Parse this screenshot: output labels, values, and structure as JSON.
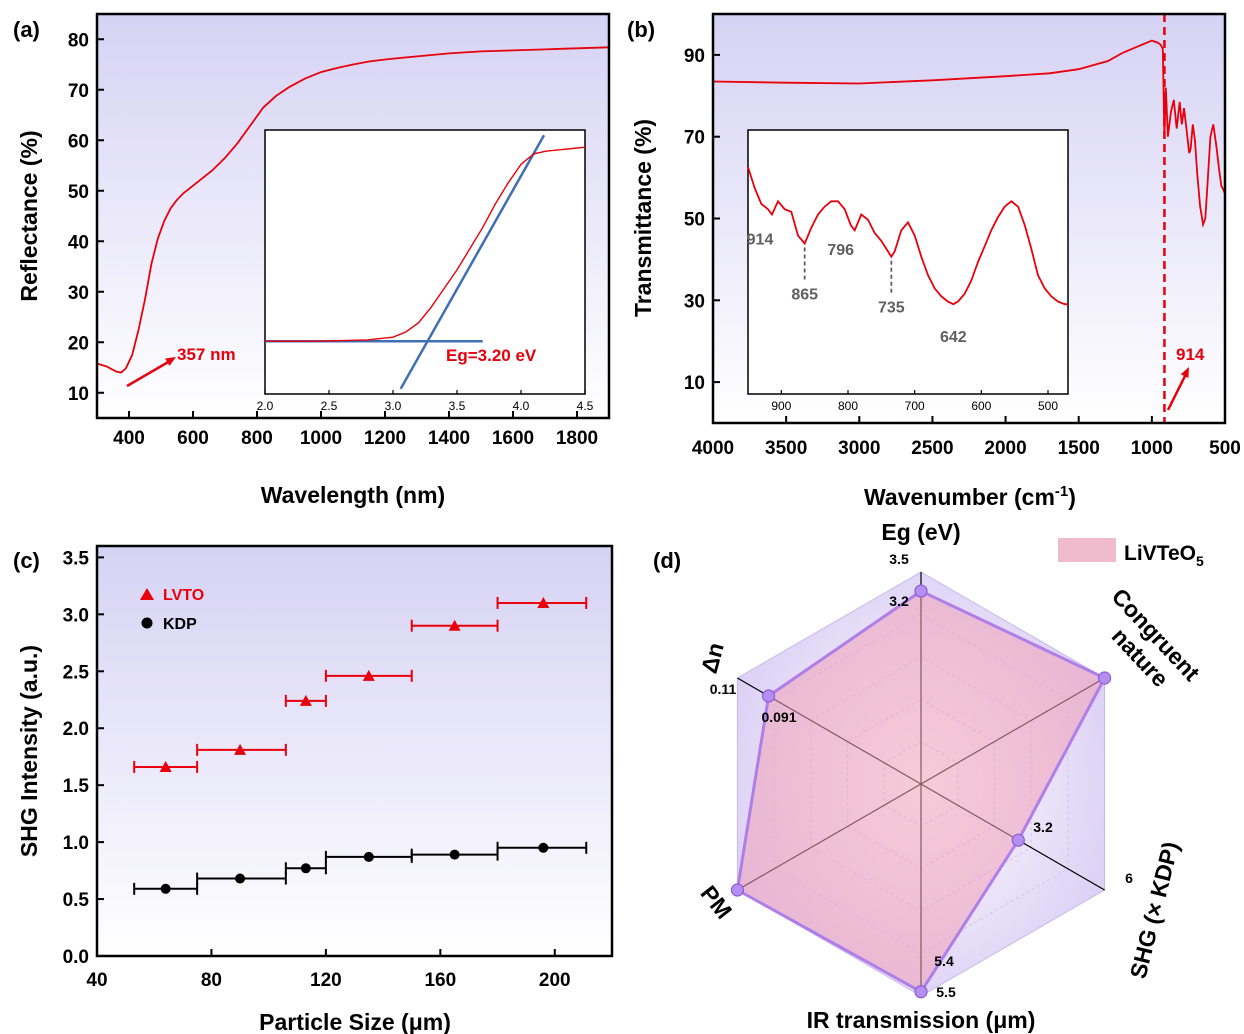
{
  "colors": {
    "curve": "#e8000b",
    "fit": "#3f6fb5",
    "bg_top": "#d6d2f4",
    "bg_bottom": "#ffffff",
    "radar": "#b07ee8",
    "radar_fill": "#f0a0b8",
    "peak_label": "#606060"
  },
  "chart_data": [
    {
      "panel": "(a)",
      "type": "line",
      "xlabel": "Wavelength (nm)",
      "ylabel": "Reflectance (%)",
      "xlim": [
        300,
        1900
      ],
      "ylim": [
        5,
        85
      ],
      "xticks": [
        "400",
        "600",
        "800",
        "1000",
        "1200",
        "1400",
        "1600",
        "1800"
      ],
      "yticks": [
        "10",
        "20",
        "30",
        "40",
        "50",
        "60",
        "70",
        "80"
      ],
      "series": [
        {
          "x": [
            300,
            330,
            360,
            375,
            390,
            410,
            430,
            450,
            470,
            490,
            510,
            530,
            550,
            570,
            600,
            630,
            660,
            700,
            740,
            780,
            820,
            860,
            900,
            950,
            1000,
            1050,
            1100,
            1150,
            1200,
            1250,
            1300,
            1350,
            1400,
            1450,
            1500,
            1550,
            1600,
            1650,
            1700,
            1750,
            1800,
            1850,
            1900
          ],
          "y": [
            15.8,
            15.2,
            14.2,
            14.0,
            14.8,
            17.5,
            22.5,
            28.5,
            35.5,
            40.5,
            44.0,
            46.5,
            48.2,
            49.5,
            51.0,
            52.5,
            54.0,
            56.5,
            59.5,
            63.0,
            66.5,
            68.8,
            70.5,
            72.2,
            73.5,
            74.3,
            75.0,
            75.6,
            76.0,
            76.3,
            76.6,
            76.9,
            77.2,
            77.4,
            77.6,
            77.7,
            77.8,
            77.9,
            78.0,
            78.1,
            78.2,
            78.3,
            78.4
          ]
        }
      ],
      "annotation": "357 nm",
      "inset": {
        "xlim": [
          2.0,
          4.5
        ],
        "ylim": [
          0,
          1
        ],
        "xticks": [
          "2.0",
          "2.5",
          "3.0",
          "3.5",
          "4.0",
          "4.5"
        ],
        "label": "Eg=3.20 eV",
        "curve": {
          "x": [
            2.0,
            2.4,
            2.8,
            3.0,
            3.1,
            3.2,
            3.3,
            3.4,
            3.5,
            3.6,
            3.7,
            3.8,
            3.9,
            4.0,
            4.1,
            4.2,
            4.3,
            4.4,
            4.5
          ],
          "y": [
            0.2,
            0.2,
            0.205,
            0.215,
            0.235,
            0.27,
            0.33,
            0.4,
            0.47,
            0.55,
            0.63,
            0.72,
            0.8,
            0.87,
            0.91,
            0.92,
            0.925,
            0.93,
            0.935
          ]
        },
        "baseline": {
          "x": [
            2.0,
            3.7
          ],
          "y": [
            0.2,
            0.2
          ]
        },
        "tangent": {
          "x": [
            3.06,
            4.18
          ],
          "y": [
            0.02,
            0.98
          ]
        }
      }
    },
    {
      "panel": "(b)",
      "type": "line",
      "xlabel": "Wavenumber (cm",
      "xlabel_sup": "-1",
      "xlabel_end": ")",
      "ylabel": "Transmittance (%)",
      "xlim": [
        4000,
        500
      ],
      "ylim": [
        0,
        100
      ],
      "xticks": [
        "4000",
        "3500",
        "3000",
        "2500",
        "2000",
        "1500",
        "1000",
        "500"
      ],
      "yticks": [
        "10",
        "30",
        "50",
        "70",
        "90"
      ],
      "series": [
        {
          "x": [
            4000,
            3500,
            3000,
            2500,
            2000,
            1700,
            1500,
            1300,
            1200,
            1100,
            1000,
            960,
            940,
            925,
            914,
            905,
            890,
            870,
            850,
            830,
            810,
            795,
            780,
            765,
            745,
            735,
            720,
            705,
            690,
            670,
            650,
            635,
            620,
            600,
            580,
            560,
            540,
            525,
            510,
            500
          ],
          "y": [
            83.5,
            83.2,
            83.0,
            83.8,
            84.8,
            85.5,
            86.5,
            88.5,
            90.5,
            92.0,
            93.5,
            93.0,
            92.5,
            91.5,
            70.0,
            82.0,
            70.0,
            76.0,
            79.0,
            72.0,
            78.5,
            73.0,
            77.0,
            72.5,
            66.0,
            67.0,
            73.0,
            69.0,
            61.0,
            53.0,
            48.5,
            50.0,
            58.0,
            70.0,
            73.0,
            68.0,
            62.0,
            58.0,
            57.0,
            56.0
          ]
        }
      ],
      "dashed_line_x": 914,
      "annotation": "914",
      "inset": {
        "xlim": [
          950,
          470
        ],
        "ylim": [
          0,
          1
        ],
        "xticks": [
          "900",
          "800",
          "700",
          "600",
          "500"
        ],
        "curve": {
          "x": [
            950,
            940,
            930,
            920,
            914,
            905,
            895,
            885,
            875,
            865,
            855,
            845,
            835,
            825,
            815,
            805,
            796,
            790,
            780,
            770,
            760,
            750,
            740,
            735,
            730,
            720,
            710,
            700,
            690,
            680,
            670,
            660,
            650,
            642,
            635,
            625,
            615,
            605,
            595,
            585,
            575,
            565,
            555,
            545,
            535,
            525,
            515,
            505,
            495,
            485,
            475,
            470
          ],
          "y": [
            0.86,
            0.78,
            0.72,
            0.7,
            0.68,
            0.73,
            0.7,
            0.69,
            0.6,
            0.57,
            0.63,
            0.68,
            0.71,
            0.73,
            0.73,
            0.7,
            0.64,
            0.62,
            0.68,
            0.66,
            0.61,
            0.58,
            0.54,
            0.52,
            0.54,
            0.62,
            0.65,
            0.6,
            0.52,
            0.45,
            0.4,
            0.37,
            0.35,
            0.34,
            0.35,
            0.38,
            0.43,
            0.5,
            0.56,
            0.62,
            0.67,
            0.71,
            0.73,
            0.71,
            0.64,
            0.55,
            0.45,
            0.4,
            0.37,
            0.35,
            0.34,
            0.34
          ]
        },
        "peaks": [
          {
            "x": 914,
            "label": "914",
            "label_pos": "above"
          },
          {
            "x": 865,
            "label": "865",
            "label_pos": "below"
          },
          {
            "x": 796,
            "label": "796",
            "label_pos": "above"
          },
          {
            "x": 735,
            "label": "735",
            "label_pos": "below"
          },
          {
            "x": 642,
            "label": "642",
            "label_pos": "below"
          }
        ]
      }
    },
    {
      "panel": "(c)",
      "type": "scatter",
      "xlabel": "Particle Size (μm)",
      "ylabel": "SHG Intensity (a.u.)",
      "xlim": [
        40,
        220
      ],
      "ylim": [
        0,
        3.6
      ],
      "xticks": [
        "40",
        "80",
        "120",
        "160",
        "200"
      ],
      "yticks": [
        "0.0",
        "0.5",
        "1.0",
        "1.5",
        "2.0",
        "2.5",
        "3.0",
        "3.5"
      ],
      "series": [
        {
          "name": "LVTO",
          "marker": "triangle",
          "color": "#e8000b",
          "x": [
            64,
            90,
            113,
            135,
            165,
            196
          ],
          "y": [
            1.66,
            1.81,
            2.24,
            2.46,
            2.9,
            3.1
          ],
          "xerr_low": [
            53,
            75,
            106,
            120,
            150,
            180
          ],
          "xerr_high": [
            75,
            106,
            120,
            150,
            180,
            211
          ]
        },
        {
          "name": "KDP",
          "marker": "circle",
          "color": "#000000",
          "x": [
            64,
            90,
            113,
            135,
            165,
            196
          ],
          "y": [
            0.59,
            0.68,
            0.77,
            0.87,
            0.89,
            0.95
          ],
          "xerr_low": [
            53,
            75,
            106,
            120,
            150,
            180
          ],
          "xerr_high": [
            75,
            106,
            120,
            150,
            180,
            211
          ]
        }
      ]
    },
    {
      "panel": "(d)",
      "type": "radar",
      "legend": "LiVTeO",
      "legend_sub": "5",
      "axes": [
        {
          "label": "Eg (eV)",
          "max_label": "3.5",
          "value_label": "3.2",
          "value": 0.91
        },
        {
          "label": "Congruent",
          "label2": "nature",
          "value": 1.0
        },
        {
          "label": "SHG (× KDP)",
          "max_label": "6",
          "value_label": "3.2",
          "value": 0.53
        },
        {
          "label": "IR transmission (μm)",
          "max_label": "5.5",
          "value_label": "5.4",
          "value": 0.98
        },
        {
          "label": "PM",
          "value": 1.0
        },
        {
          "label": "Δn",
          "max_label": "0.11",
          "value_label": "0.091",
          "value": 0.83
        }
      ]
    }
  ]
}
